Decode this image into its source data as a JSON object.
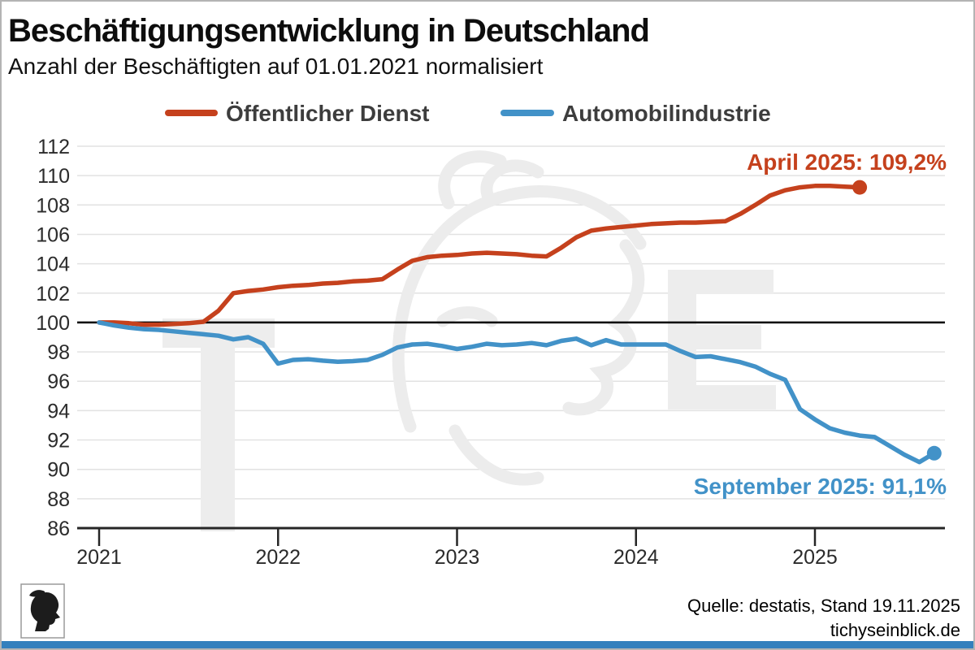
{
  "header": {
    "title": "Beschäftigungsentwicklung in Deutschland",
    "subtitle": "Anzahl der Beschäftigten auf 01.01.2021 normalisiert"
  },
  "legend": {
    "series1_label": "Öffentlicher Dienst",
    "series2_label": "Automobilindustrie"
  },
  "annotations": {
    "public_service_end": "April 2025: 109,2%",
    "auto_industry_end": "September 2025: 91,1%"
  },
  "footer": {
    "source": "Quelle: destatis, Stand 19.11.2025",
    "website": "tichyseinblick.de"
  },
  "colors": {
    "public_service": "#c5411d",
    "auto_industry": "#4292c8",
    "baseline": "#000000",
    "grid": "#e2e2e2",
    "axis": "#262626",
    "bottom_bar": "#3480bd",
    "watermark": "#ededed"
  },
  "chart_data": {
    "type": "line",
    "title": "Beschäftigungsentwicklung in Deutschland",
    "subtitle": "Anzahl der Beschäftigten auf 01.01.2021 normalisiert",
    "x_axis": {
      "tick_labels": [
        "2021",
        "2022",
        "2023",
        "2024",
        "2025"
      ],
      "unit": "monthly values starting 2021-01"
    },
    "y_axis": {
      "ticks": [
        86,
        88,
        90,
        92,
        94,
        96,
        98,
        100,
        102,
        104,
        106,
        108,
        110,
        112
      ],
      "baseline": 100,
      "range": [
        86,
        113
      ]
    },
    "grid": "horizontal",
    "legend_position": "top",
    "series": [
      {
        "name": "Öffentlicher Dienst",
        "color": "#c5411d",
        "end_label": "April 2025: 109,2%",
        "end_value": 109.2,
        "values": [
          100.0,
          100.0,
          99.95,
          99.85,
          99.85,
          99.9,
          99.95,
          100.05,
          100.8,
          102.0,
          102.15,
          102.25,
          102.4,
          102.5,
          102.55,
          102.65,
          102.7,
          102.8,
          102.85,
          102.95,
          103.6,
          104.2,
          104.45,
          104.55,
          104.6,
          104.7,
          104.75,
          104.7,
          104.65,
          104.55,
          104.5,
          105.1,
          105.8,
          106.25,
          106.4,
          106.5,
          106.6,
          106.7,
          106.75,
          106.8,
          106.8,
          106.85,
          106.9,
          107.4,
          108.0,
          108.65,
          109.0,
          109.2,
          109.3,
          109.3,
          109.25,
          109.2
        ]
      },
      {
        "name": "Automobilindustrie",
        "color": "#4292c8",
        "end_label": "September 2025: 91,1%",
        "end_value": 91.1,
        "values": [
          100.0,
          99.8,
          99.65,
          99.55,
          99.5,
          99.4,
          99.3,
          99.2,
          99.1,
          98.85,
          99.0,
          98.55,
          97.2,
          97.45,
          97.5,
          97.4,
          97.33,
          97.37,
          97.45,
          97.8,
          98.3,
          98.5,
          98.55,
          98.4,
          98.2,
          98.35,
          98.55,
          98.45,
          98.5,
          98.6,
          98.45,
          98.75,
          98.9,
          98.45,
          98.8,
          98.5,
          98.5,
          98.5,
          98.5,
          98.05,
          97.65,
          97.7,
          97.5,
          97.3,
          97.0,
          96.5,
          96.1,
          94.1,
          93.4,
          92.8,
          92.5,
          92.3,
          92.2,
          91.6,
          91.0,
          90.5,
          91.1
        ]
      }
    ]
  }
}
